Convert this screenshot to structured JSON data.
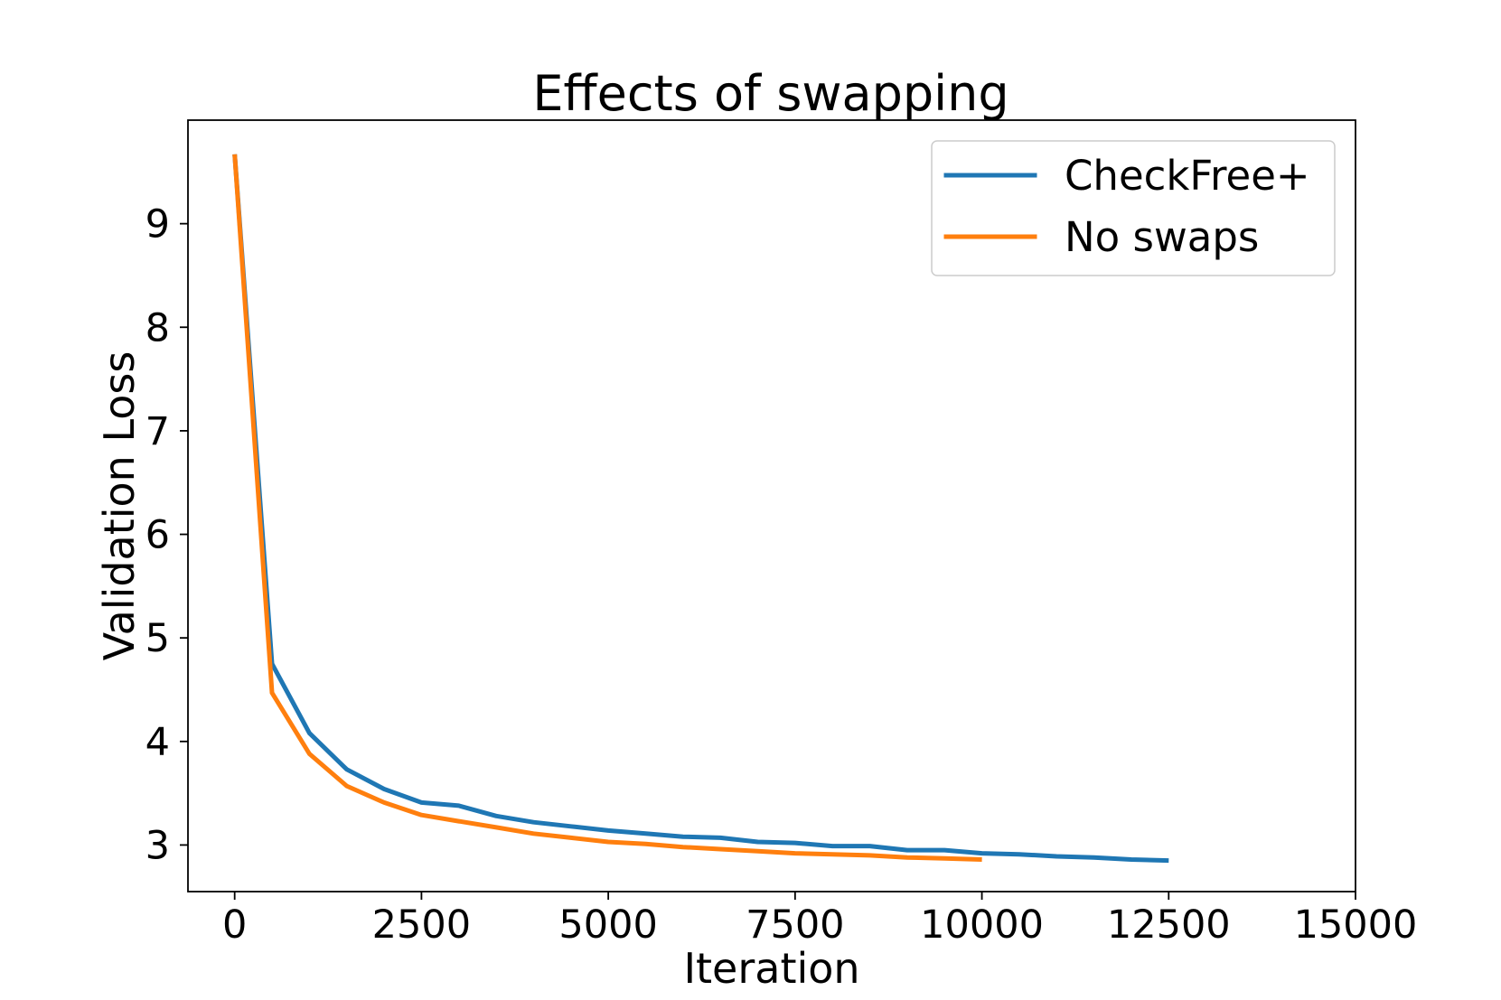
{
  "chart_data": {
    "type": "line",
    "title": "Effects of swapping",
    "xlabel": "Iteration",
    "ylabel": "Validation Loss",
    "xlim": [
      -625,
      15000
    ],
    "ylim": [
      2.55,
      10.0
    ],
    "xticks": [
      0,
      2500,
      5000,
      7500,
      10000,
      12500,
      15000
    ],
    "xtick_labels": [
      "0",
      "2500",
      "5000",
      "7500",
      "10000",
      "12500",
      "15000"
    ],
    "yticks": [
      3,
      4,
      5,
      6,
      7,
      8,
      9
    ],
    "ytick_labels": [
      "3",
      "4",
      "5",
      "6",
      "7",
      "8",
      "9"
    ],
    "grid": false,
    "legend": "top-right",
    "series": [
      {
        "name": "CheckFree+",
        "color": "#1f77b4",
        "x": [
          0,
          500,
          1000,
          1500,
          2000,
          2500,
          3000,
          3500,
          4000,
          4500,
          5000,
          5500,
          6000,
          6500,
          7000,
          7500,
          8000,
          8500,
          9000,
          9500,
          10000,
          10500,
          11000,
          11500,
          12000,
          12500
        ],
        "y": [
          9.67,
          4.75,
          4.08,
          3.73,
          3.54,
          3.41,
          3.38,
          3.28,
          3.22,
          3.18,
          3.14,
          3.11,
          3.08,
          3.07,
          3.03,
          3.02,
          2.99,
          2.99,
          2.95,
          2.95,
          2.92,
          2.91,
          2.89,
          2.88,
          2.86,
          2.85
        ]
      },
      {
        "name": "No swaps",
        "color": "#ff7f0e",
        "x": [
          0,
          500,
          1000,
          1500,
          2000,
          2500,
          3000,
          3500,
          4000,
          4500,
          5000,
          5500,
          6000,
          6500,
          7000,
          7500,
          8000,
          8500,
          9000,
          9500,
          10000
        ],
        "y": [
          9.67,
          4.47,
          3.88,
          3.57,
          3.41,
          3.29,
          3.23,
          3.17,
          3.11,
          3.07,
          3.03,
          3.01,
          2.98,
          2.96,
          2.94,
          2.92,
          2.91,
          2.9,
          2.88,
          2.87,
          2.86
        ]
      }
    ]
  }
}
